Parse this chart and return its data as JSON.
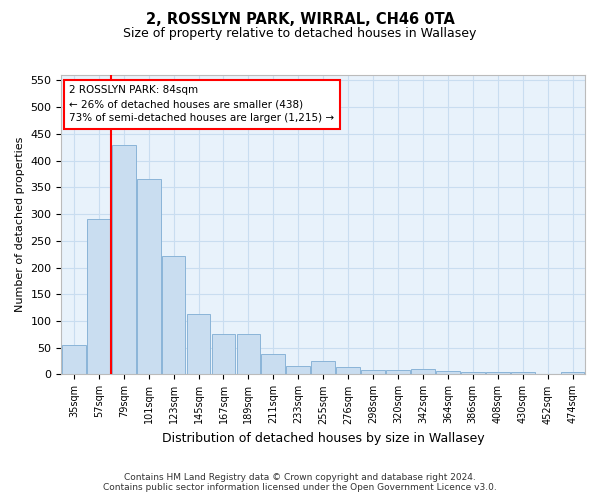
{
  "title_line1": "2, ROSSLYN PARK, WIRRAL, CH46 0TA",
  "title_line2": "Size of property relative to detached houses in Wallasey",
  "xlabel": "Distribution of detached houses by size in Wallasey",
  "ylabel": "Number of detached properties",
  "footnote": "Contains HM Land Registry data © Crown copyright and database right 2024.\nContains public sector information licensed under the Open Government Licence v3.0.",
  "bar_labels": [
    "35sqm",
    "57sqm",
    "79sqm",
    "101sqm",
    "123sqm",
    "145sqm",
    "167sqm",
    "189sqm",
    "211sqm",
    "233sqm",
    "255sqm",
    "276sqm",
    "298sqm",
    "320sqm",
    "342sqm",
    "364sqm",
    "386sqm",
    "408sqm",
    "430sqm",
    "452sqm",
    "474sqm"
  ],
  "bar_values": [
    55,
    290,
    430,
    365,
    222,
    113,
    76,
    76,
    38,
    16,
    26,
    14,
    9,
    9,
    10,
    6,
    5,
    5,
    5,
    1,
    4
  ],
  "bar_color": "#c9ddf0",
  "bar_edgecolor": "#8ab4d8",
  "grid_color": "#c9ddf0",
  "background_color": "#e8f2fb",
  "property_label": "2 ROSSLYN PARK: 84sqm",
  "annotation_line1": "← 26% of detached houses are smaller (438)",
  "annotation_line2": "73% of semi-detached houses are larger (1,215) →",
  "vline_bin_index": 2,
  "ylim": [
    0,
    560
  ],
  "yticks": [
    0,
    50,
    100,
    150,
    200,
    250,
    300,
    350,
    400,
    450,
    500,
    550
  ]
}
